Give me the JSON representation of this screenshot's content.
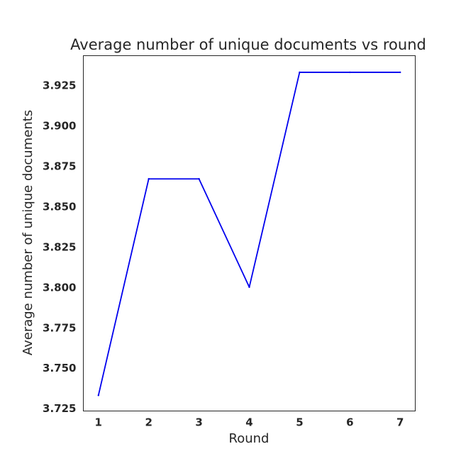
{
  "chart_data": {
    "type": "line",
    "title": "Average number of unique documents vs round",
    "xlabel": "Round",
    "ylabel": "Average number of unique documents",
    "x": [
      1,
      2,
      3,
      4,
      5,
      6,
      7
    ],
    "series": [
      {
        "values": [
          3.733,
          3.867,
          3.867,
          3.8,
          3.933,
          3.933,
          3.933
        ],
        "color": "#0000ee"
      }
    ],
    "xticks": [
      "1",
      "2",
      "3",
      "4",
      "5",
      "6",
      "7"
    ],
    "yticks": [
      "3.725",
      "3.750",
      "3.775",
      "3.800",
      "3.825",
      "3.850",
      "3.875",
      "3.900",
      "3.925"
    ],
    "xlim": [
      0.7,
      7.3
    ],
    "ylim": [
      3.7233,
      3.9433
    ],
    "grid": false,
    "legend": false
  }
}
